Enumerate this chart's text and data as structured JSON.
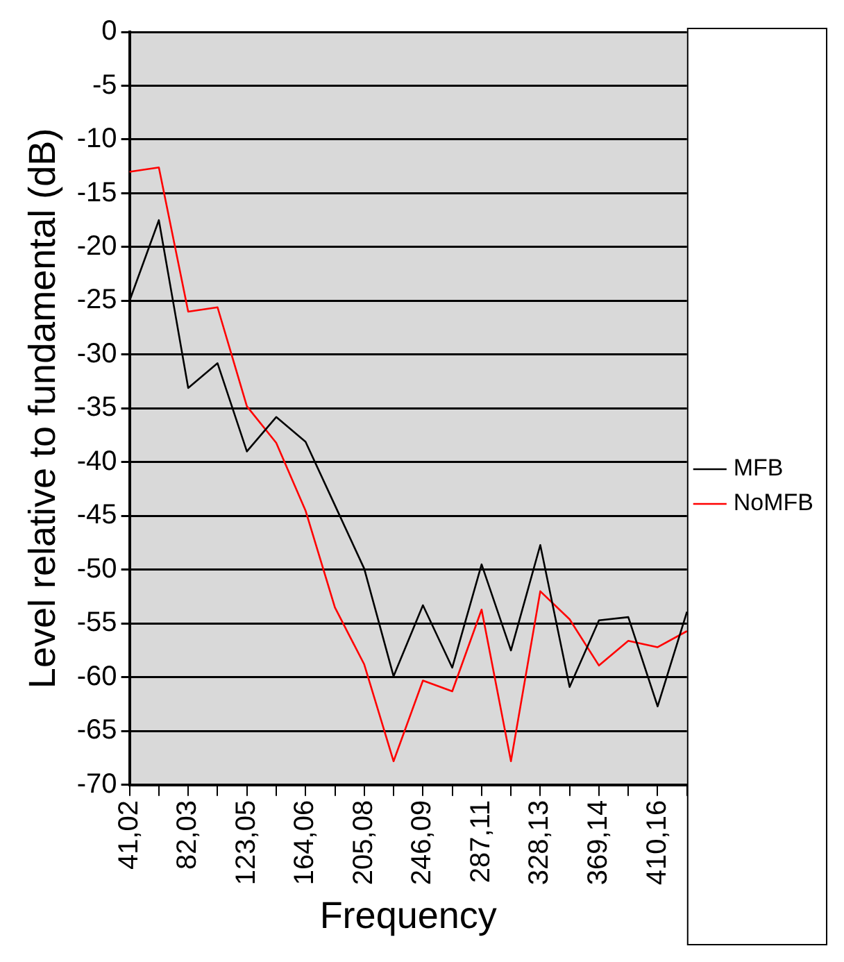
{
  "chart_data": {
    "type": "line",
    "xlabel": "Frequency",
    "ylabel": "Level relative to fundamental (dB)",
    "categories": [
      "41,02",
      null,
      "82,03",
      null,
      "123,05",
      null,
      "164,06",
      null,
      "205,08",
      null,
      "246,09",
      null,
      "287,11",
      null,
      "328,13",
      null,
      "369,14",
      null,
      "410,16",
      null
    ],
    "series": [
      {
        "name": "MFB",
        "color": "#000000",
        "values": [
          -25,
          -17.5,
          -33.1,
          -30.8,
          -39,
          -35.8,
          -38.1,
          -44,
          -49.9,
          -59.9,
          -53.3,
          -59.1,
          -49.5,
          -57.5,
          -47.7,
          -60.9,
          -54.7,
          -54.4,
          -62.7,
          -53.9
        ]
      },
      {
        "name": "NoMFB",
        "color": "#ff0000",
        "values": [
          -13,
          -12.6,
          -26,
          -25.6,
          -34.8,
          -38.2,
          -44.5,
          -53.5,
          -58.8,
          -67.8,
          -60.3,
          -61.3,
          -53.7,
          -67.8,
          -52,
          -54.6,
          -58.9,
          -56.6,
          -57.2,
          -55.7
        ]
      }
    ],
    "ylim": [
      -70,
      0
    ],
    "yticks": [
      0,
      -5,
      -10,
      -15,
      -20,
      -25,
      -30,
      -35,
      -40,
      -45,
      -50,
      -55,
      -60,
      -65,
      -70
    ],
    "grid": "y",
    "legend": "right",
    "marker": "none",
    "line_style": "solid"
  }
}
